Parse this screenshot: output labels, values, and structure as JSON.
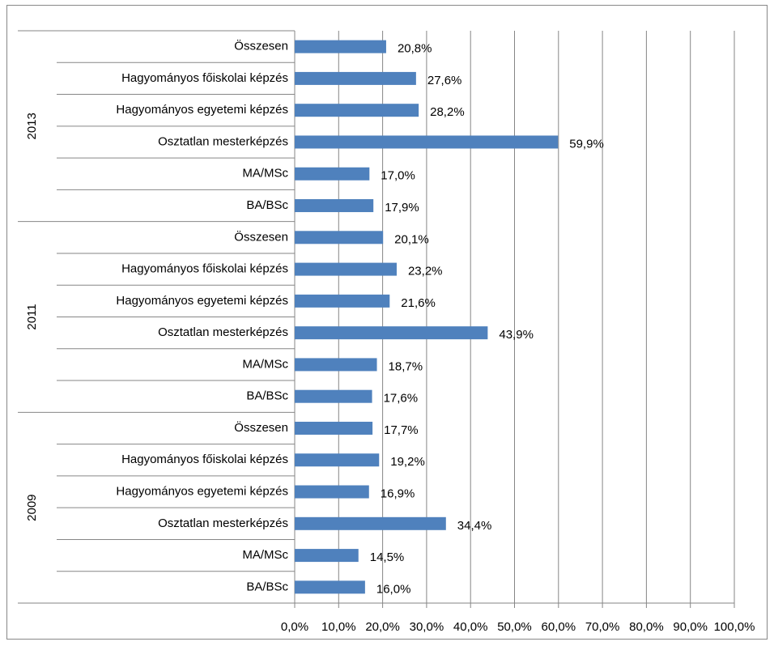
{
  "chart_data": {
    "type": "bar",
    "orientation": "horizontal",
    "color": "#4f81bd",
    "grid": true,
    "xlim": [
      0,
      100
    ],
    "xticks": [
      {
        "value": 0,
        "label": "0,0%"
      },
      {
        "value": 10,
        "label": "10,0%"
      },
      {
        "value": 20,
        "label": "20,0%"
      },
      {
        "value": 30,
        "label": "30,0%"
      },
      {
        "value": 40,
        "label": "40,0%"
      },
      {
        "value": 50,
        "label": "50,0%"
      },
      {
        "value": 60,
        "label": "60,0%"
      },
      {
        "value": 70,
        "label": "70,0%"
      },
      {
        "value": 80,
        "label": "80,0%"
      },
      {
        "value": 90,
        "label": "90,0%"
      },
      {
        "value": 100,
        "label": "100,0%"
      }
    ],
    "groups": [
      {
        "name": "2013",
        "categories": [
          "Összesen",
          "Hagyományos főiskolai képzés",
          "Hagyományos egyetemi képzés",
          "Osztatlan mesterképzés",
          "MA/MSc",
          "BA/BSc"
        ],
        "values": [
          20.8,
          27.6,
          28.2,
          59.9,
          17.0,
          17.9
        ],
        "value_labels": [
          "20,8%",
          "27,6%",
          "28,2%",
          "59,9%",
          "17,0%",
          "17,9%"
        ]
      },
      {
        "name": "2011",
        "categories": [
          "Összesen",
          "Hagyományos főiskolai képzés",
          "Hagyományos egyetemi képzés",
          "Osztatlan mesterképzés",
          "MA/MSc",
          "BA/BSc"
        ],
        "values": [
          20.1,
          23.2,
          21.6,
          43.9,
          18.7,
          17.6
        ],
        "value_labels": [
          "20,1%",
          "23,2%",
          "21,6%",
          "43,9%",
          "18,7%",
          "17,6%"
        ]
      },
      {
        "name": "2009",
        "categories": [
          "Összesen",
          "Hagyományos főiskolai képzés",
          "Hagyományos egyetemi képzés",
          "Osztatlan mesterképzés",
          "MA/MSc",
          "BA/BSc"
        ],
        "values": [
          17.7,
          19.2,
          16.9,
          34.4,
          14.5,
          16.0
        ],
        "value_labels": [
          "17,7%",
          "19,2%",
          "16,9%",
          "34,4%",
          "14,5%",
          "16,0%"
        ]
      }
    ]
  }
}
